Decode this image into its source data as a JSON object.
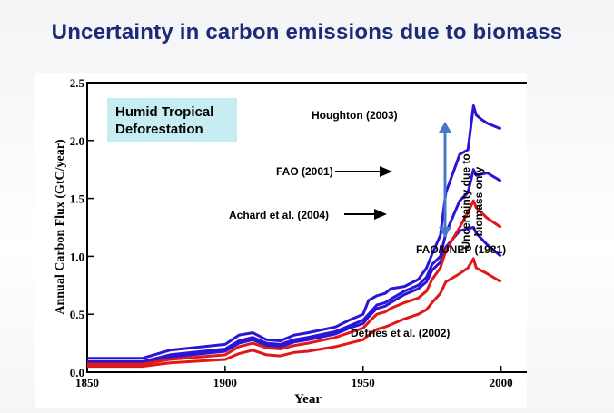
{
  "title": "Uncertainty in carbon emissions due to biomass",
  "chart_data": {
    "type": "line",
    "panel_label": "Humid Tropical\nDeforestation",
    "xlabel": "Year",
    "ylabel": "Annual Carbon Flux  (GtC/year)",
    "xlim": [
      1850,
      2010
    ],
    "ylim": [
      0,
      2.5
    ],
    "xticks": [
      1850,
      1900,
      1950,
      2000
    ],
    "yticks": [
      0.0,
      0.5,
      1.0,
      1.5,
      2.0,
      2.5
    ],
    "ytick_labels": [
      "0.0",
      "0.5",
      "1.0",
      "1.5",
      "2.0",
      "2.5"
    ],
    "grid": false,
    "series": [
      {
        "name": "Houghton (2003)",
        "color": "#2a14d6",
        "x": [
          1850,
          1870,
          1880,
          1900,
          1905,
          1910,
          1915,
          1920,
          1925,
          1930,
          1940,
          1945,
          1950,
          1952,
          1955,
          1958,
          1960,
          1965,
          1970,
          1973,
          1975,
          1978,
          1980,
          1985,
          1988,
          1990,
          1991,
          1993,
          1995,
          2000
        ],
        "y": [
          0.12,
          0.12,
          0.19,
          0.24,
          0.32,
          0.34,
          0.28,
          0.27,
          0.32,
          0.34,
          0.39,
          0.45,
          0.5,
          0.62,
          0.66,
          0.68,
          0.72,
          0.74,
          0.8,
          0.9,
          1.02,
          1.18,
          1.55,
          1.88,
          1.92,
          2.3,
          2.22,
          2.18,
          2.15,
          2.1
        ]
      },
      {
        "name": "FAO (2001)",
        "color": "#2a14d6",
        "x": [
          1850,
          1870,
          1880,
          1900,
          1905,
          1910,
          1915,
          1920,
          1925,
          1930,
          1940,
          1945,
          1950,
          1952,
          1955,
          1958,
          1960,
          1965,
          1970,
          1973,
          1975,
          1978,
          1980,
          1985,
          1988,
          1990,
          1991,
          1995,
          2000
        ],
        "y": [
          0.09,
          0.09,
          0.15,
          0.2,
          0.27,
          0.3,
          0.25,
          0.24,
          0.28,
          0.3,
          0.35,
          0.4,
          0.45,
          0.5,
          0.58,
          0.6,
          0.63,
          0.7,
          0.75,
          0.82,
          0.93,
          1.0,
          1.2,
          1.48,
          1.55,
          1.75,
          1.7,
          1.72,
          1.65
        ]
      },
      {
        "name": "Achard et al. (2004)",
        "color": "#2a14d6",
        "x": [
          1850,
          1870,
          1880,
          1900,
          1905,
          1910,
          1915,
          1920,
          1925,
          1930,
          1940,
          1945,
          1950,
          1952,
          1955,
          1958,
          1960,
          1965,
          1970,
          1973,
          1975,
          1978,
          1980,
          1985,
          1988,
          1990,
          1991,
          1995,
          2000
        ],
        "y": [
          0.08,
          0.08,
          0.13,
          0.18,
          0.25,
          0.28,
          0.23,
          0.22,
          0.26,
          0.28,
          0.33,
          0.38,
          0.42,
          0.48,
          0.55,
          0.57,
          0.6,
          0.67,
          0.72,
          0.78,
          0.88,
          0.95,
          1.08,
          1.22,
          1.24,
          1.25,
          1.2,
          1.1,
          1.0
        ]
      },
      {
        "name": "FAO/UNEP (1981)",
        "color": "#e01818",
        "x": [
          1850,
          1870,
          1880,
          1900,
          1905,
          1910,
          1915,
          1920,
          1925,
          1930,
          1940,
          1945,
          1950,
          1952,
          1955,
          1958,
          1960,
          1965,
          1970,
          1973,
          1975,
          1978,
          1980,
          1985,
          1988,
          1990,
          1991,
          1995,
          2000
        ],
        "y": [
          0.07,
          0.07,
          0.11,
          0.15,
          0.22,
          0.25,
          0.21,
          0.2,
          0.23,
          0.25,
          0.3,
          0.34,
          0.38,
          0.43,
          0.5,
          0.52,
          0.55,
          0.6,
          0.64,
          0.7,
          0.8,
          0.9,
          1.05,
          1.25,
          1.38,
          1.48,
          1.42,
          1.33,
          1.25
        ]
      },
      {
        "name": "Defries et al. (2002)",
        "color": "#e01818",
        "x": [
          1850,
          1870,
          1880,
          1900,
          1905,
          1910,
          1915,
          1920,
          1925,
          1930,
          1940,
          1945,
          1950,
          1952,
          1955,
          1958,
          1960,
          1965,
          1970,
          1973,
          1975,
          1978,
          1980,
          1985,
          1988,
          1990,
          1991,
          1995,
          2000
        ],
        "y": [
          0.05,
          0.05,
          0.08,
          0.11,
          0.16,
          0.19,
          0.15,
          0.14,
          0.17,
          0.18,
          0.22,
          0.25,
          0.28,
          0.32,
          0.37,
          0.39,
          0.41,
          0.46,
          0.5,
          0.54,
          0.6,
          0.68,
          0.78,
          0.85,
          0.9,
          0.98,
          0.9,
          0.85,
          0.78
        ]
      }
    ],
    "annotations": {
      "houghton": "Houghton (2003)",
      "fao2001": "FAO (2001)",
      "achard": "Achard et al. (2004)",
      "faounep": "FAO/UNEP (1981)",
      "defries": "Defries et al. (2002)",
      "uncertainty_line1": "Uncertainty due to",
      "uncertainty_line2": "biomass only"
    },
    "colors": {
      "blue_series": "#2a14d6",
      "red_series": "#e01818",
      "label_box": "#c6eef2",
      "bracket": "#4a78c8",
      "title": "#1c2a7a"
    }
  }
}
